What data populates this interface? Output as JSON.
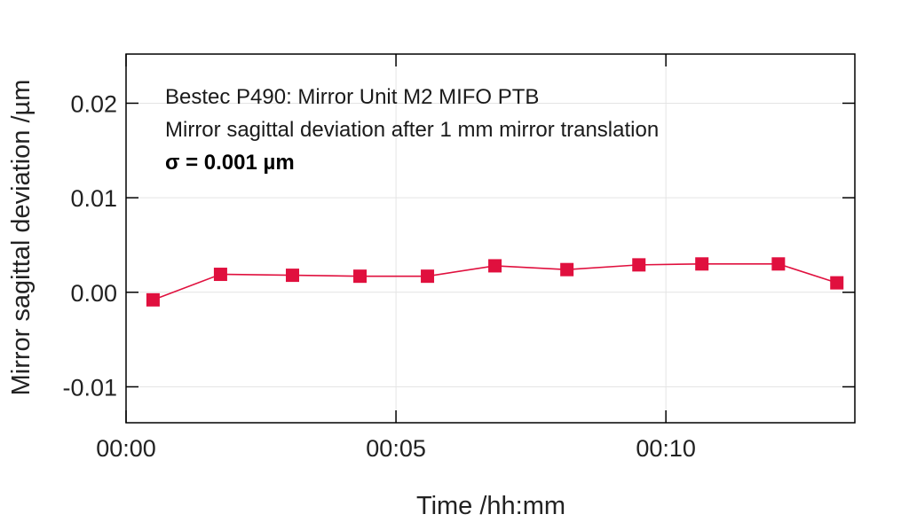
{
  "chart_data": {
    "type": "line",
    "x": [
      "00:00:30",
      "00:01:45",
      "00:03:05",
      "00:04:20",
      "00:05:35",
      "00:06:50",
      "00:08:10",
      "00:09:30",
      "00:10:40",
      "00:12:05",
      "00:13:10"
    ],
    "series": [
      {
        "values": [
          -0.0008,
          0.0019,
          0.0018,
          0.0017,
          0.0017,
          0.0028,
          0.0024,
          0.0029,
          0.003,
          0.003,
          0.001
        ]
      }
    ],
    "xlabel": "Time /hh:mm",
    "ylabel": "Mirror sagittal deviation /µm",
    "x_ticks": [
      "00:00",
      "00:05",
      "00:10"
    ],
    "y_ticks": [
      "0.02",
      "0.01",
      "0.00",
      "-0.01"
    ],
    "xlim": [
      "00:00:00",
      "00:13:30"
    ],
    "ylim": [
      -0.0138,
      0.0252
    ],
    "grid": true,
    "annotations": [
      "Bestec P490: Mirror Unit M2 MIFO PTB",
      "Mirror sagittal deviation after 1 mm mirror translation",
      "σ = 0.001 µm"
    ],
    "colors": {
      "series": "#e0103e",
      "grid": "#e4e4e4",
      "frame": "#000000"
    }
  }
}
